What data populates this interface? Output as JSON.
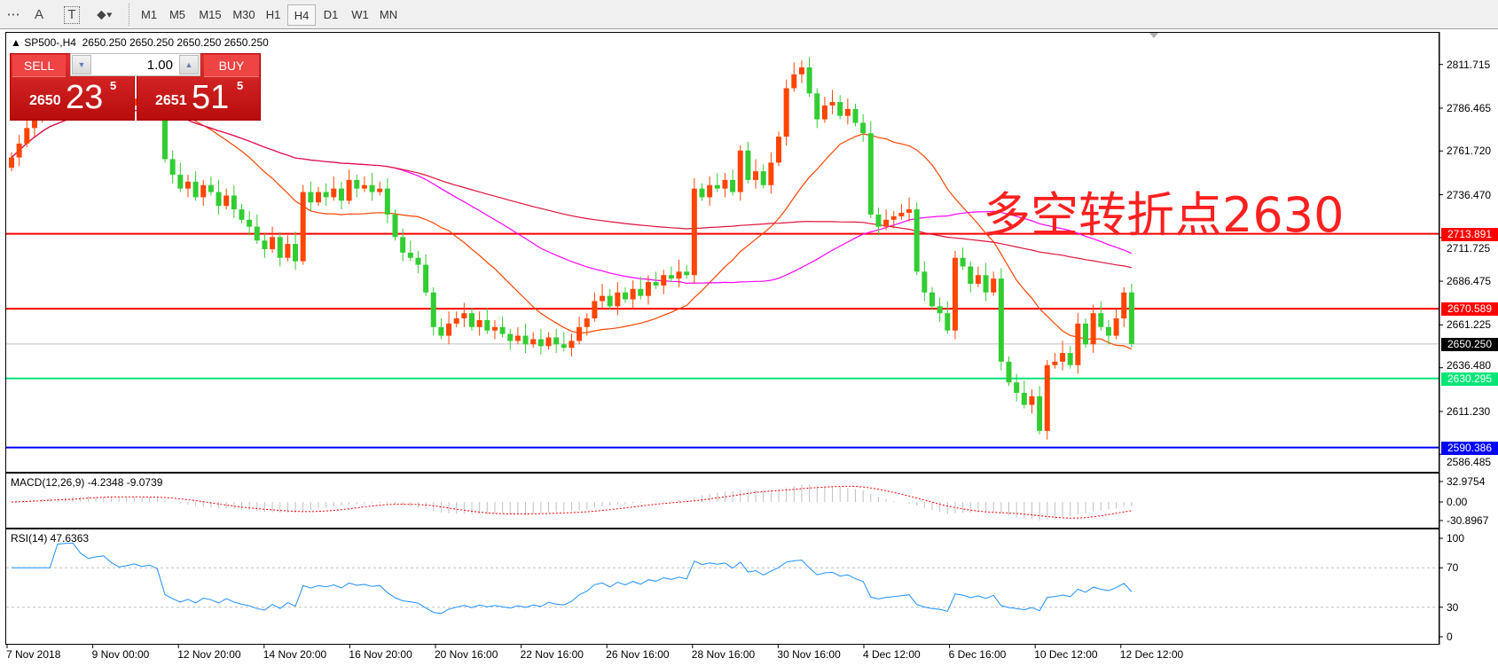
{
  "toolbar": {
    "tools": [
      {
        "name": "period-separator-icon",
        "glyph": "⋯"
      },
      {
        "name": "text-tool-icon",
        "glyph": "A"
      },
      {
        "name": "text-label-tool-icon",
        "glyph": "T"
      },
      {
        "name": "arrows-tool-icon",
        "glyph": "⬥▾"
      }
    ],
    "timeframes": [
      "M1",
      "M5",
      "M15",
      "M30",
      "H1",
      "H4",
      "D1",
      "W1",
      "MN"
    ],
    "active_timeframe": "H4"
  },
  "chart": {
    "symbol": "SP500-,H4",
    "ohlc_text": "2650.250 2650.250 2650.250 2650.250"
  },
  "trade_panel": {
    "sell_label": "SELL",
    "buy_label": "BUY",
    "volume": "1.00",
    "sell_price": {
      "prefix": "2650",
      "main": "23",
      "sup": "5"
    },
    "buy_price": {
      "prefix": "2651",
      "main": "51",
      "sup": "5"
    }
  },
  "annotation": "多空转折点2630",
  "price_axis": {
    "ticks": [
      "2811.715",
      "2786.465",
      "2761.720",
      "2736.470",
      "2711.725",
      "2686.475",
      "2661.225",
      "2636.480",
      "2611.230",
      "2586.485"
    ],
    "levels": [
      {
        "value": "2713.891",
        "color": "#ff0000",
        "kind": "resistance"
      },
      {
        "value": "2670.589",
        "color": "#ff0000",
        "kind": "resistance"
      },
      {
        "value": "2650.250",
        "color": "#000000",
        "kind": "bid"
      },
      {
        "value": "2630.295",
        "color": "#00e676",
        "kind": "support"
      },
      {
        "value": "2590.386",
        "color": "#0000ff",
        "kind": "support"
      }
    ]
  },
  "macd": {
    "label": "MACD(12,26,9) -4.2348 -9.0739",
    "ticks": [
      "32.9754",
      "0.00",
      "-30.8967"
    ]
  },
  "rsi": {
    "label": "RSI(14) 47.6363",
    "ticks": [
      "100",
      "70",
      "30",
      "0"
    ]
  },
  "time_axis": [
    "7 Nov 2018",
    "9 Nov 00:00",
    "12 Nov 20:00",
    "14 Nov 20:00",
    "16 Nov 20:00",
    "20 Nov 16:00",
    "22 Nov 16:00",
    "26 Nov 16:00",
    "28 Nov 16:00",
    "30 Nov 16:00",
    "4 Dec 12:00",
    "6 Dec 16:00",
    "10 Dec 12:00",
    "12 Dec 12:00"
  ],
  "colors": {
    "bull": "#ff4500",
    "bear": "#32cd32",
    "ma_fast": "#ff4500",
    "ma_mid": "#ff00ff",
    "ma_slow": "#dc143c",
    "macd_hist": "#c0c0c0",
    "macd_signal": "#ff0000",
    "rsi": "#1e90ff",
    "grid": "#c0c0c0"
  },
  "chart_data": {
    "type": "candlestick",
    "symbol": "SP500-",
    "timeframe": "H4",
    "ylim": [
      2586.485,
      2820
    ],
    "close": [
      2758,
      2766,
      2775,
      2780,
      2786,
      2790,
      2788,
      2792,
      2795,
      2790,
      2787,
      2791,
      2794,
      2789,
      2785,
      2788,
      2792,
      2790,
      2793,
      2790,
      2757,
      2748,
      2740,
      2744,
      2735,
      2742,
      2738,
      2730,
      2736,
      2728,
      2722,
      2718,
      2710,
      2705,
      2712,
      2700,
      2708,
      2698,
      2738,
      2732,
      2738,
      2735,
      2740,
      2733,
      2745,
      2740,
      2742,
      2738,
      2740,
      2725,
      2712,
      2703,
      2700,
      2696,
      2680,
      2660,
      2655,
      2662,
      2665,
      2668,
      2660,
      2664,
      2658,
      2660,
      2656,
      2652,
      2655,
      2650,
      2653,
      2649,
      2654,
      2650,
      2648,
      2652,
      2660,
      2665,
      2675,
      2678,
      2672,
      2680,
      2676,
      2682,
      2678,
      2686,
      2684,
      2690,
      2688,
      2692,
      2690,
      2740,
      2735,
      2742,
      2740,
      2745,
      2738,
      2762,
      2745,
      2750,
      2742,
      2755,
      2770,
      2798,
      2806,
      2810,
      2795,
      2780,
      2788,
      2790,
      2782,
      2786,
      2778,
      2772,
      2725,
      2718,
      2722,
      2724,
      2726,
      2728,
      2692,
      2680,
      2672,
      2668,
      2658,
      2700,
      2695,
      2685,
      2690,
      2680,
      2688,
      2640,
      2628,
      2622,
      2615,
      2620,
      2600,
      2638,
      2640,
      2645,
      2638,
      2662,
      2650,
      2668,
      2660,
      2655,
      2665,
      2680,
      2650.25
    ]
  }
}
